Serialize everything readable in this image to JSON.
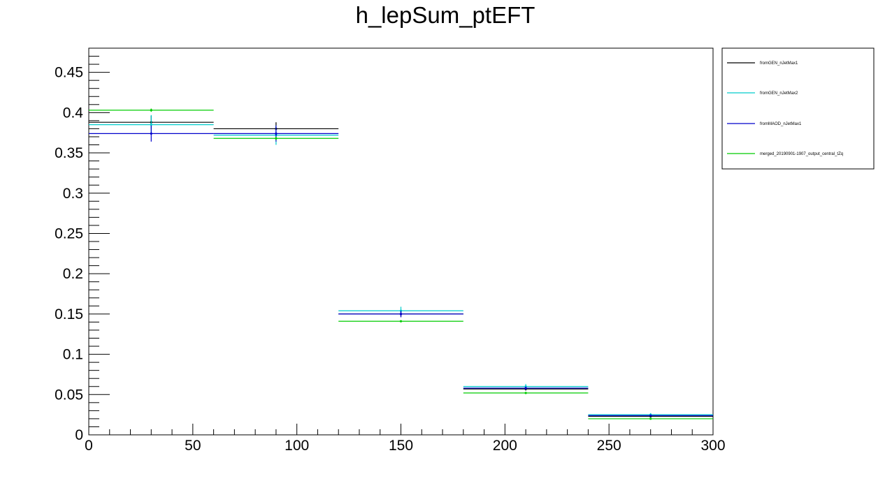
{
  "chart_data": {
    "type": "line",
    "style": "histogram-with-error-bars",
    "title": "h_lepSum_ptEFT",
    "xlabel": "",
    "ylabel": "",
    "xlim": [
      0,
      300
    ],
    "ylim": [
      0,
      0.48
    ],
    "x_ticks": [
      0,
      50,
      100,
      150,
      200,
      250,
      300
    ],
    "x_tick_labels": [
      "0",
      "50",
      "100",
      "150",
      "200",
      "250",
      "300"
    ],
    "y_ticks": [
      0,
      0.05,
      0.1,
      0.15,
      0.2,
      0.25,
      0.3,
      0.35,
      0.4,
      0.45
    ],
    "y_tick_labels": [
      "0",
      "0.05",
      "0.1",
      "0.15",
      "0.2",
      "0.25",
      "0.3",
      "0.35",
      "0.4",
      "0.45"
    ],
    "bin_edges": [
      0,
      60,
      120,
      180,
      240,
      300
    ],
    "bin_centers": [
      30,
      90,
      150,
      210,
      270
    ],
    "grid": false,
    "legend_position": "top-right, outside plot",
    "series": [
      {
        "name": "fromGEN_nJetMax1",
        "color": "#000000",
        "values": [
          0.388,
          0.38,
          0.15,
          0.057,
          0.023
        ],
        "errors": [
          0.008,
          0.008,
          0.004,
          0.002,
          0.001
        ]
      },
      {
        "name": "fromGEN_nJetMax2",
        "color": "#00cccc",
        "values": [
          0.385,
          0.372,
          0.154,
          0.06,
          0.025
        ],
        "errors": [
          0.012,
          0.012,
          0.005,
          0.003,
          0.002
        ]
      },
      {
        "name": "fromMAOD_nJetMax1",
        "color": "#0000cc",
        "values": [
          0.374,
          0.374,
          0.15,
          0.058,
          0.024
        ],
        "errors": [
          0.01,
          0.01,
          0.004,
          0.002,
          0.001
        ]
      },
      {
        "name": "merged_20190901-1907_output_central_tZq",
        "color": "#00cc00",
        "values": [
          0.403,
          0.368,
          0.141,
          0.052,
          0.02
        ],
        "errors": [
          0.002,
          0.002,
          0.001,
          0.001,
          0.001
        ]
      }
    ]
  }
}
